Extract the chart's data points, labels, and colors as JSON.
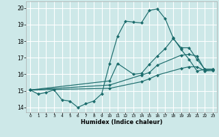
{
  "title": "",
  "xlabel": "Humidex (Indice chaleur)",
  "ylabel": "",
  "bg_color": "#cde8e8",
  "line_color": "#1a6b6b",
  "grid_color": "#b8d8d8",
  "xlim": [
    -0.5,
    23.5
  ],
  "ylim": [
    13.7,
    20.4
  ],
  "xticks": [
    0,
    1,
    2,
    3,
    4,
    5,
    6,
    7,
    8,
    9,
    10,
    11,
    12,
    13,
    14,
    15,
    16,
    17,
    18,
    19,
    20,
    21,
    22,
    23
  ],
  "yticks": [
    14,
    15,
    16,
    17,
    18,
    19,
    20
  ],
  "lines": [
    {
      "x": [
        0,
        1,
        2,
        3,
        4,
        5,
        6,
        7,
        8,
        9,
        10,
        11,
        12,
        13,
        14,
        15,
        16,
        17,
        18,
        19,
        20,
        21,
        22,
        23
      ],
      "y": [
        15.05,
        14.8,
        14.9,
        15.05,
        14.45,
        14.38,
        14.0,
        14.22,
        14.38,
        14.82,
        16.65,
        18.3,
        19.2,
        19.15,
        19.1,
        19.85,
        19.95,
        19.35,
        18.2,
        17.5,
        16.9,
        16.2,
        16.3,
        16.3
      ]
    },
    {
      "x": [
        0,
        10,
        11,
        13,
        14,
        15,
        16,
        17,
        18,
        19,
        20,
        21,
        22,
        23
      ],
      "y": [
        15.05,
        15.6,
        16.65,
        16.0,
        16.05,
        16.6,
        17.1,
        17.55,
        18.15,
        17.6,
        17.6,
        16.9,
        16.3,
        16.3
      ]
    },
    {
      "x": [
        0,
        10,
        14,
        15,
        16,
        19,
        20,
        21,
        22,
        23
      ],
      "y": [
        15.05,
        15.35,
        15.95,
        16.1,
        16.55,
        17.15,
        17.2,
        17.1,
        16.25,
        16.28
      ]
    },
    {
      "x": [
        0,
        10,
        14,
        15,
        16,
        19,
        20,
        21,
        22,
        23
      ],
      "y": [
        15.05,
        15.15,
        15.55,
        15.72,
        15.95,
        16.35,
        16.45,
        16.45,
        16.2,
        16.22
      ]
    }
  ]
}
